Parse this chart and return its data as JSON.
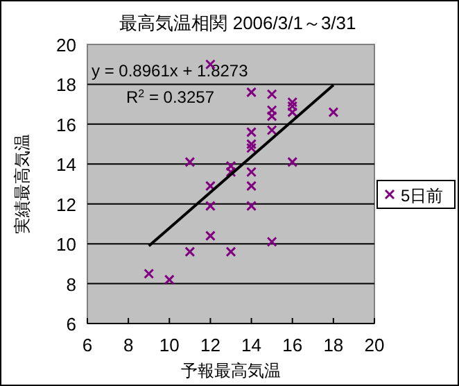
{
  "chart_data": {
    "type": "scatter",
    "title": "最高気温相関  2006/3/1～3/31",
    "xlabel": "予報最高気温",
    "ylabel": "実績最高気温",
    "xlim": [
      6,
      20
    ],
    "xticks": [
      6,
      8,
      10,
      12,
      14,
      16,
      18,
      20
    ],
    "ylim": [
      6,
      20
    ],
    "yticks": [
      6,
      8,
      10,
      12,
      14,
      16,
      18,
      20
    ],
    "grid": "y",
    "legend": "right",
    "annotations": [
      "y = 0.8961x + 1.8273",
      "R$^{2}$ = 0.3257"
    ],
    "series": [
      {
        "name": "5日前",
        "color": "#800080",
        "marker": "cross",
        "x": [
          11,
          12,
          12,
          12,
          12,
          11,
          13,
          9,
          10,
          13,
          13,
          14,
          14,
          14,
          14,
          14,
          14,
          14,
          15,
          15,
          15,
          15,
          15,
          16,
          16,
          16,
          16,
          18
        ],
        "values": [
          14.1,
          19.0,
          12.9,
          11.9,
          10.4,
          9.6,
          9.6,
          8.5,
          8.2,
          13.9,
          13.6,
          17.6,
          15.6,
          15.0,
          14.8,
          13.6,
          12.9,
          11.9,
          17.5,
          16.7,
          16.4,
          15.7,
          10.1,
          17.1,
          16.9,
          16.6,
          14.1,
          16.6
        ]
      },
      {
        "type": "line",
        "color": "#000000",
        "marker": "none",
        "x": [
          9,
          18
        ],
        "values": [
          9.89,
          17.96
        ]
      }
    ]
  }
}
